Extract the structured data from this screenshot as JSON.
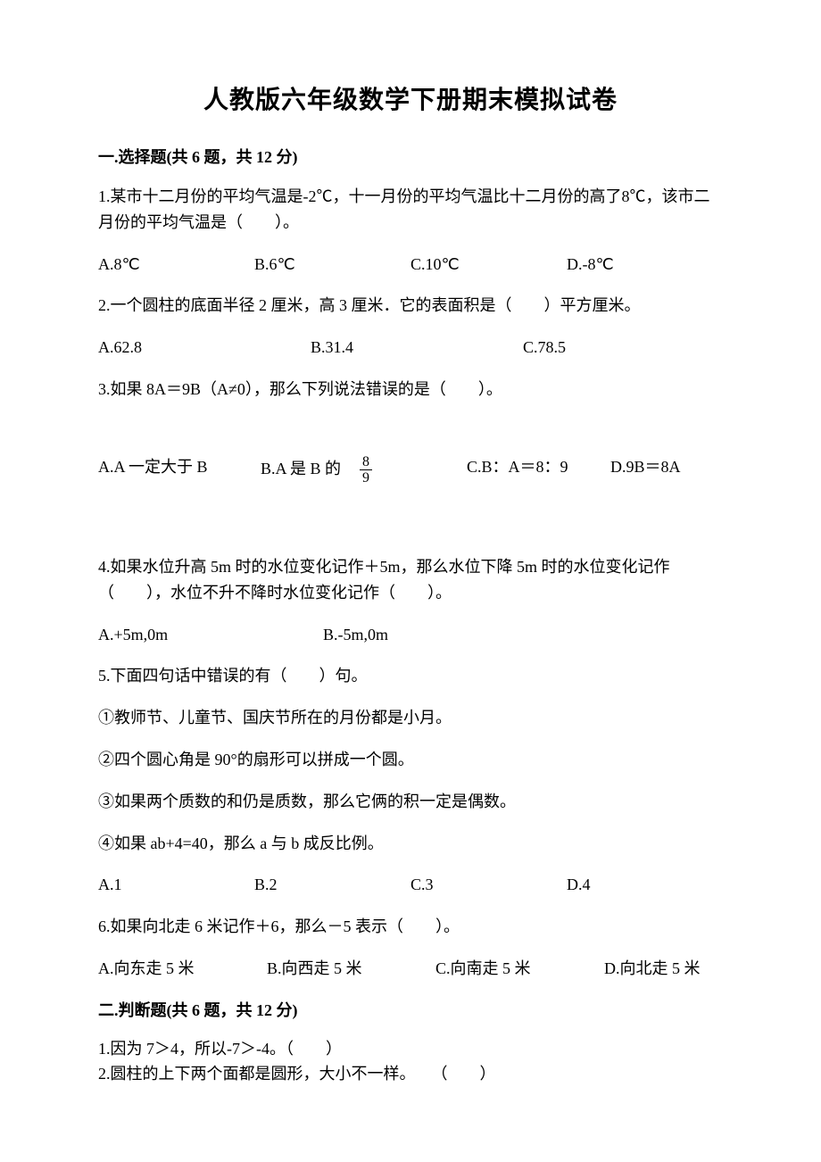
{
  "title": "人教版六年级数学下册期末模拟试卷",
  "section1": {
    "header": "一.选择题(共 6 题，共 12 分)",
    "q1": {
      "text": "1.某市十二月份的平均气温是-2℃，十一月份的平均气温比十二月份的高了8℃，该市二月份的平均气温是（　　）。",
      "a": "A.8℃",
      "b": "B.6℃",
      "c": "C.10℃",
      "d": "D.-8℃"
    },
    "q2": {
      "text": "2.一个圆柱的底面半径 2 厘米，高 3 厘米．它的表面积是（　　）平方厘米。",
      "a": "A.62.8",
      "b": "B.31.4",
      "c": "C.78.5"
    },
    "q3": {
      "text": "3.如果 8A＝9B（A≠0），那么下列说法错误的是（　　）。",
      "a": "A.A 一定大于 B",
      "b_prefix": "B.A 是 B 的　",
      "frac_num": "8",
      "frac_den": "9",
      "c": "C.B：A＝8：9",
      "d": "D.9B＝8A"
    },
    "q4": {
      "text": "4.如果水位升高 5m 时的水位变化记作＋5m，那么水位下降 5m 时的水位变化记作（　　），水位不升不降时水位变化记作（　　）。",
      "a": "A.+5m,0m",
      "b": "B.-5m,0m"
    },
    "q5": {
      "text": "5.下面四句话中错误的有（　　）句。",
      "s1": "①教师节、儿童节、国庆节所在的月份都是小月。",
      "s2": "②四个圆心角是 90°的扇形可以拼成一个圆。",
      "s3": "③如果两个质数的和仍是质数，那么它俩的积一定是偶数。",
      "s4": "④如果 ab+4=40，那么 a 与 b 成反比例。",
      "a": "A.1",
      "b": "B.2",
      "c": "C.3",
      "d": "D.4"
    },
    "q6": {
      "text": "6.如果向北走 6 米记作＋6，那么－5 表示（　　）。",
      "a": "A.向东走 5 米",
      "b": "B.向西走 5 米",
      "c": "C.向南走 5 米",
      "d": "D.向北走 5 米"
    }
  },
  "section2": {
    "header": "二.判断题(共 6 题，共 12 分)",
    "j1": "1.因为 7＞4，所以-7＞-4。（　　）",
    "j2": "2.圆柱的上下两个面都是圆形，大小不一样。　　（　　）"
  }
}
